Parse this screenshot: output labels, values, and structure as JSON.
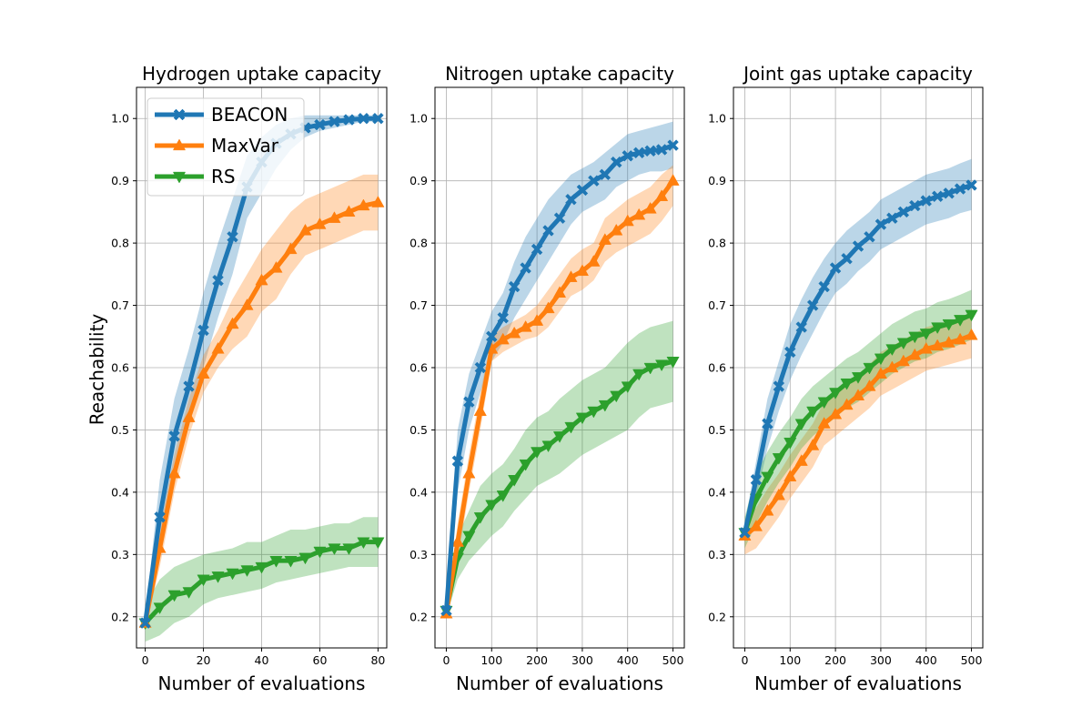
{
  "ylabel": "Reachability",
  "legend": {
    "placement": "upper-left of first panel",
    "entries": [
      {
        "name": "BEACON",
        "color": "#1f77b4",
        "marker": "X"
      },
      {
        "name": "MaxVar",
        "color": "#ff7f0e",
        "marker": "triangle-up"
      },
      {
        "name": "RS",
        "color": "#2ca02c",
        "marker": "triangle-down"
      }
    ]
  },
  "chart_data": [
    {
      "type": "line",
      "title": "Hydrogen uptake capacity",
      "xlabel": "Number of evaluations",
      "ylabel": "Reachability",
      "xlim": [
        -3,
        83
      ],
      "ylim": [
        0.15,
        1.05
      ],
      "xticks": [
        0,
        20,
        40,
        60,
        80
      ],
      "yticks": [
        0.2,
        0.3,
        0.4,
        0.5,
        0.6,
        0.7,
        0.8,
        0.9,
        1.0
      ],
      "grid": true,
      "series": [
        {
          "name": "BEACON",
          "color": "#1f77b4",
          "x": [
            0,
            5,
            10,
            15,
            20,
            25,
            30,
            35,
            40,
            45,
            50,
            55,
            60,
            65,
            70,
            75,
            80
          ],
          "y": [
            0.19,
            0.36,
            0.49,
            0.57,
            0.66,
            0.74,
            0.81,
            0.89,
            0.93,
            0.96,
            0.975,
            0.985,
            0.99,
            0.995,
            0.998,
            1.0,
            1.0
          ],
          "lower": [
            0.18,
            0.3,
            0.43,
            0.52,
            0.6,
            0.68,
            0.75,
            0.84,
            0.88,
            0.92,
            0.95,
            0.97,
            0.98,
            0.985,
            0.99,
            0.995,
            0.995
          ],
          "upper": [
            0.2,
            0.42,
            0.55,
            0.63,
            0.72,
            0.8,
            0.87,
            0.94,
            0.97,
            0.99,
            1.0,
            1.005,
            1.005,
            1.005,
            1.005,
            1.005,
            1.005
          ]
        },
        {
          "name": "MaxVar",
          "color": "#ff7f0e",
          "x": [
            0,
            5,
            10,
            15,
            20,
            25,
            30,
            35,
            40,
            45,
            50,
            55,
            60,
            65,
            70,
            75,
            80
          ],
          "y": [
            0.19,
            0.31,
            0.43,
            0.52,
            0.59,
            0.63,
            0.67,
            0.7,
            0.74,
            0.76,
            0.79,
            0.82,
            0.83,
            0.84,
            0.85,
            0.86,
            0.865
          ],
          "lower": [
            0.18,
            0.28,
            0.4,
            0.49,
            0.56,
            0.6,
            0.63,
            0.65,
            0.69,
            0.71,
            0.75,
            0.78,
            0.79,
            0.8,
            0.81,
            0.82,
            0.82
          ],
          "upper": [
            0.2,
            0.34,
            0.46,
            0.55,
            0.62,
            0.66,
            0.71,
            0.75,
            0.79,
            0.82,
            0.85,
            0.87,
            0.88,
            0.89,
            0.9,
            0.91,
            0.91
          ]
        },
        {
          "name": "RS",
          "color": "#2ca02c",
          "x": [
            0,
            5,
            10,
            15,
            20,
            25,
            30,
            35,
            40,
            45,
            50,
            55,
            60,
            65,
            70,
            75,
            80
          ],
          "y": [
            0.19,
            0.215,
            0.235,
            0.24,
            0.26,
            0.265,
            0.27,
            0.275,
            0.28,
            0.29,
            0.29,
            0.295,
            0.305,
            0.31,
            0.31,
            0.32,
            0.32
          ],
          "lower": [
            0.16,
            0.17,
            0.19,
            0.2,
            0.22,
            0.23,
            0.235,
            0.24,
            0.245,
            0.255,
            0.26,
            0.265,
            0.27,
            0.275,
            0.28,
            0.28,
            0.28
          ],
          "upper": [
            0.22,
            0.26,
            0.28,
            0.29,
            0.3,
            0.305,
            0.31,
            0.32,
            0.32,
            0.33,
            0.34,
            0.34,
            0.345,
            0.35,
            0.35,
            0.36,
            0.36
          ]
        }
      ]
    },
    {
      "type": "line",
      "title": "Nitrogen uptake capacity",
      "xlabel": "Number of evaluations",
      "ylabel": "",
      "xlim": [
        -25,
        525
      ],
      "ylim": [
        0.15,
        1.05
      ],
      "xticks": [
        0,
        100,
        200,
        300,
        400,
        500
      ],
      "yticks": [
        0.2,
        0.3,
        0.4,
        0.5,
        0.6,
        0.7,
        0.8,
        0.9,
        1.0
      ],
      "grid": true,
      "series": [
        {
          "name": "BEACON",
          "color": "#1f77b4",
          "x": [
            0,
            25,
            50,
            75,
            100,
            125,
            150,
            175,
            200,
            225,
            250,
            275,
            300,
            325,
            350,
            375,
            400,
            425,
            450,
            475,
            500
          ],
          "y": [
            0.21,
            0.45,
            0.545,
            0.6,
            0.65,
            0.68,
            0.73,
            0.76,
            0.79,
            0.82,
            0.84,
            0.87,
            0.885,
            0.9,
            0.91,
            0.93,
            0.94,
            0.945,
            0.948,
            0.95,
            0.957
          ],
          "lower": [
            0.2,
            0.4,
            0.5,
            0.56,
            0.61,
            0.64,
            0.68,
            0.71,
            0.74,
            0.77,
            0.8,
            0.83,
            0.85,
            0.86,
            0.87,
            0.89,
            0.9,
            0.91,
            0.915,
            0.915,
            0.92
          ],
          "upper": [
            0.22,
            0.5,
            0.59,
            0.64,
            0.69,
            0.72,
            0.77,
            0.81,
            0.84,
            0.87,
            0.89,
            0.91,
            0.92,
            0.93,
            0.945,
            0.96,
            0.975,
            0.98,
            0.985,
            0.99,
            0.995
          ]
        },
        {
          "name": "MaxVar",
          "color": "#ff7f0e",
          "x": [
            0,
            25,
            50,
            75,
            100,
            125,
            150,
            175,
            200,
            225,
            250,
            275,
            300,
            325,
            350,
            375,
            400,
            425,
            450,
            475,
            500
          ],
          "y": [
            0.205,
            0.32,
            0.43,
            0.53,
            0.63,
            0.645,
            0.655,
            0.665,
            0.675,
            0.695,
            0.72,
            0.745,
            0.755,
            0.77,
            0.805,
            0.82,
            0.835,
            0.845,
            0.855,
            0.875,
            0.9
          ],
          "lower": [
            0.2,
            0.29,
            0.4,
            0.5,
            0.61,
            0.625,
            0.635,
            0.645,
            0.65,
            0.665,
            0.69,
            0.715,
            0.725,
            0.74,
            0.77,
            0.785,
            0.795,
            0.805,
            0.815,
            0.835,
            0.86
          ],
          "upper": [
            0.21,
            0.35,
            0.46,
            0.56,
            0.65,
            0.665,
            0.675,
            0.685,
            0.7,
            0.725,
            0.75,
            0.775,
            0.79,
            0.8,
            0.84,
            0.855,
            0.87,
            0.88,
            0.89,
            0.91,
            0.925
          ]
        },
        {
          "name": "RS",
          "color": "#2ca02c",
          "x": [
            0,
            25,
            50,
            75,
            100,
            125,
            150,
            175,
            200,
            225,
            250,
            275,
            300,
            325,
            350,
            375,
            400,
            425,
            450,
            475,
            500
          ],
          "y": [
            0.21,
            0.295,
            0.33,
            0.36,
            0.38,
            0.395,
            0.42,
            0.445,
            0.465,
            0.475,
            0.49,
            0.505,
            0.52,
            0.53,
            0.54,
            0.555,
            0.57,
            0.59,
            0.6,
            0.605,
            0.61
          ],
          "lower": [
            0.2,
            0.26,
            0.29,
            0.31,
            0.33,
            0.345,
            0.37,
            0.39,
            0.41,
            0.42,
            0.43,
            0.445,
            0.46,
            0.47,
            0.48,
            0.49,
            0.5,
            0.52,
            0.535,
            0.54,
            0.545
          ],
          "upper": [
            0.22,
            0.33,
            0.37,
            0.41,
            0.43,
            0.445,
            0.47,
            0.5,
            0.52,
            0.53,
            0.55,
            0.565,
            0.58,
            0.59,
            0.6,
            0.62,
            0.64,
            0.655,
            0.665,
            0.67,
            0.675
          ]
        }
      ]
    },
    {
      "type": "line",
      "title": "Joint gas uptake capacity",
      "xlabel": "Number of evaluations",
      "ylabel": "",
      "xlim": [
        -25,
        525
      ],
      "ylim": [
        0.15,
        1.05
      ],
      "xticks": [
        0,
        100,
        200,
        300,
        400,
        500
      ],
      "yticks": [
        0.2,
        0.3,
        0.4,
        0.5,
        0.6,
        0.7,
        0.8,
        0.9,
        1.0
      ],
      "grid": true,
      "series": [
        {
          "name": "BEACON",
          "color": "#1f77b4",
          "x": [
            0,
            25,
            50,
            75,
            100,
            125,
            150,
            175,
            200,
            225,
            250,
            275,
            300,
            325,
            350,
            375,
            400,
            425,
            450,
            475,
            500
          ],
          "y": [
            0.335,
            0.42,
            0.51,
            0.57,
            0.625,
            0.665,
            0.7,
            0.73,
            0.76,
            0.775,
            0.795,
            0.81,
            0.83,
            0.84,
            0.85,
            0.86,
            0.868,
            0.875,
            0.88,
            0.887,
            0.893
          ],
          "lower": [
            0.32,
            0.39,
            0.47,
            0.53,
            0.58,
            0.62,
            0.655,
            0.69,
            0.72,
            0.735,
            0.755,
            0.77,
            0.79,
            0.8,
            0.81,
            0.82,
            0.83,
            0.835,
            0.84,
            0.848,
            0.853
          ],
          "upper": [
            0.35,
            0.45,
            0.55,
            0.61,
            0.67,
            0.71,
            0.745,
            0.775,
            0.8,
            0.82,
            0.835,
            0.85,
            0.87,
            0.88,
            0.89,
            0.9,
            0.91,
            0.915,
            0.92,
            0.928,
            0.935
          ]
        },
        {
          "name": "MaxVar",
          "color": "#ff7f0e",
          "x": [
            0,
            25,
            50,
            75,
            100,
            125,
            150,
            175,
            200,
            225,
            250,
            275,
            300,
            325,
            350,
            375,
            400,
            425,
            450,
            475,
            500
          ],
          "y": [
            0.33,
            0.345,
            0.37,
            0.395,
            0.425,
            0.45,
            0.475,
            0.51,
            0.525,
            0.54,
            0.555,
            0.57,
            0.59,
            0.6,
            0.61,
            0.62,
            0.63,
            0.635,
            0.64,
            0.645,
            0.652
          ],
          "lower": [
            0.3,
            0.31,
            0.335,
            0.36,
            0.39,
            0.415,
            0.44,
            0.475,
            0.49,
            0.505,
            0.52,
            0.535,
            0.555,
            0.565,
            0.575,
            0.585,
            0.595,
            0.6,
            0.605,
            0.61,
            0.615
          ],
          "upper": [
            0.35,
            0.375,
            0.405,
            0.43,
            0.46,
            0.485,
            0.51,
            0.545,
            0.56,
            0.575,
            0.59,
            0.605,
            0.625,
            0.635,
            0.645,
            0.655,
            0.665,
            0.67,
            0.675,
            0.68,
            0.69
          ]
        },
        {
          "name": "RS",
          "color": "#2ca02c",
          "x": [
            0,
            25,
            50,
            75,
            100,
            125,
            150,
            175,
            200,
            225,
            250,
            275,
            300,
            325,
            350,
            375,
            400,
            425,
            450,
            475,
            500
          ],
          "y": [
            0.335,
            0.39,
            0.425,
            0.455,
            0.48,
            0.51,
            0.53,
            0.545,
            0.56,
            0.575,
            0.585,
            0.6,
            0.615,
            0.63,
            0.64,
            0.65,
            0.655,
            0.665,
            0.67,
            0.677,
            0.685
          ],
          "lower": [
            0.31,
            0.35,
            0.385,
            0.415,
            0.44,
            0.47,
            0.49,
            0.505,
            0.52,
            0.535,
            0.545,
            0.56,
            0.575,
            0.59,
            0.6,
            0.61,
            0.615,
            0.625,
            0.63,
            0.637,
            0.645
          ],
          "upper": [
            0.36,
            0.43,
            0.465,
            0.495,
            0.52,
            0.55,
            0.57,
            0.585,
            0.6,
            0.615,
            0.625,
            0.64,
            0.655,
            0.67,
            0.68,
            0.69,
            0.695,
            0.705,
            0.71,
            0.717,
            0.725
          ]
        }
      ]
    }
  ]
}
